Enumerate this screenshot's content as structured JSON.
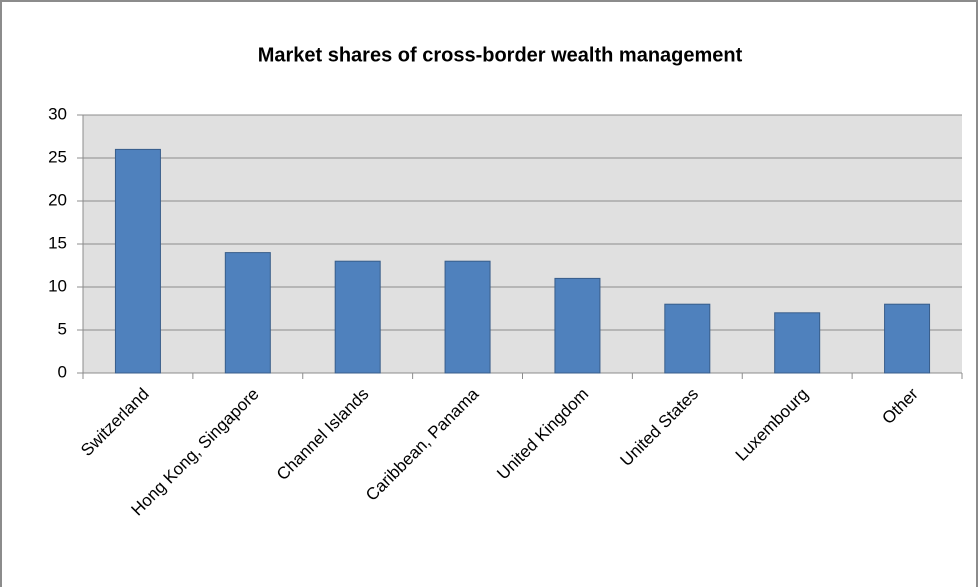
{
  "chart_data": {
    "type": "bar",
    "title": "Market shares of cross-border wealth management",
    "categories": [
      "Switzerland",
      "Hong Kong, Singapore",
      "Channel Islands",
      "Caribbean, Panama",
      "United Kingdom",
      "United States",
      "Luxembourg",
      "Other"
    ],
    "values": [
      26,
      14,
      13,
      13,
      11,
      8,
      7,
      8
    ],
    "color": "#4f81bd",
    "ylim": [
      0,
      30
    ],
    "yticks": [
      0,
      5,
      10,
      15,
      20,
      25,
      30
    ],
    "grid": true
  }
}
